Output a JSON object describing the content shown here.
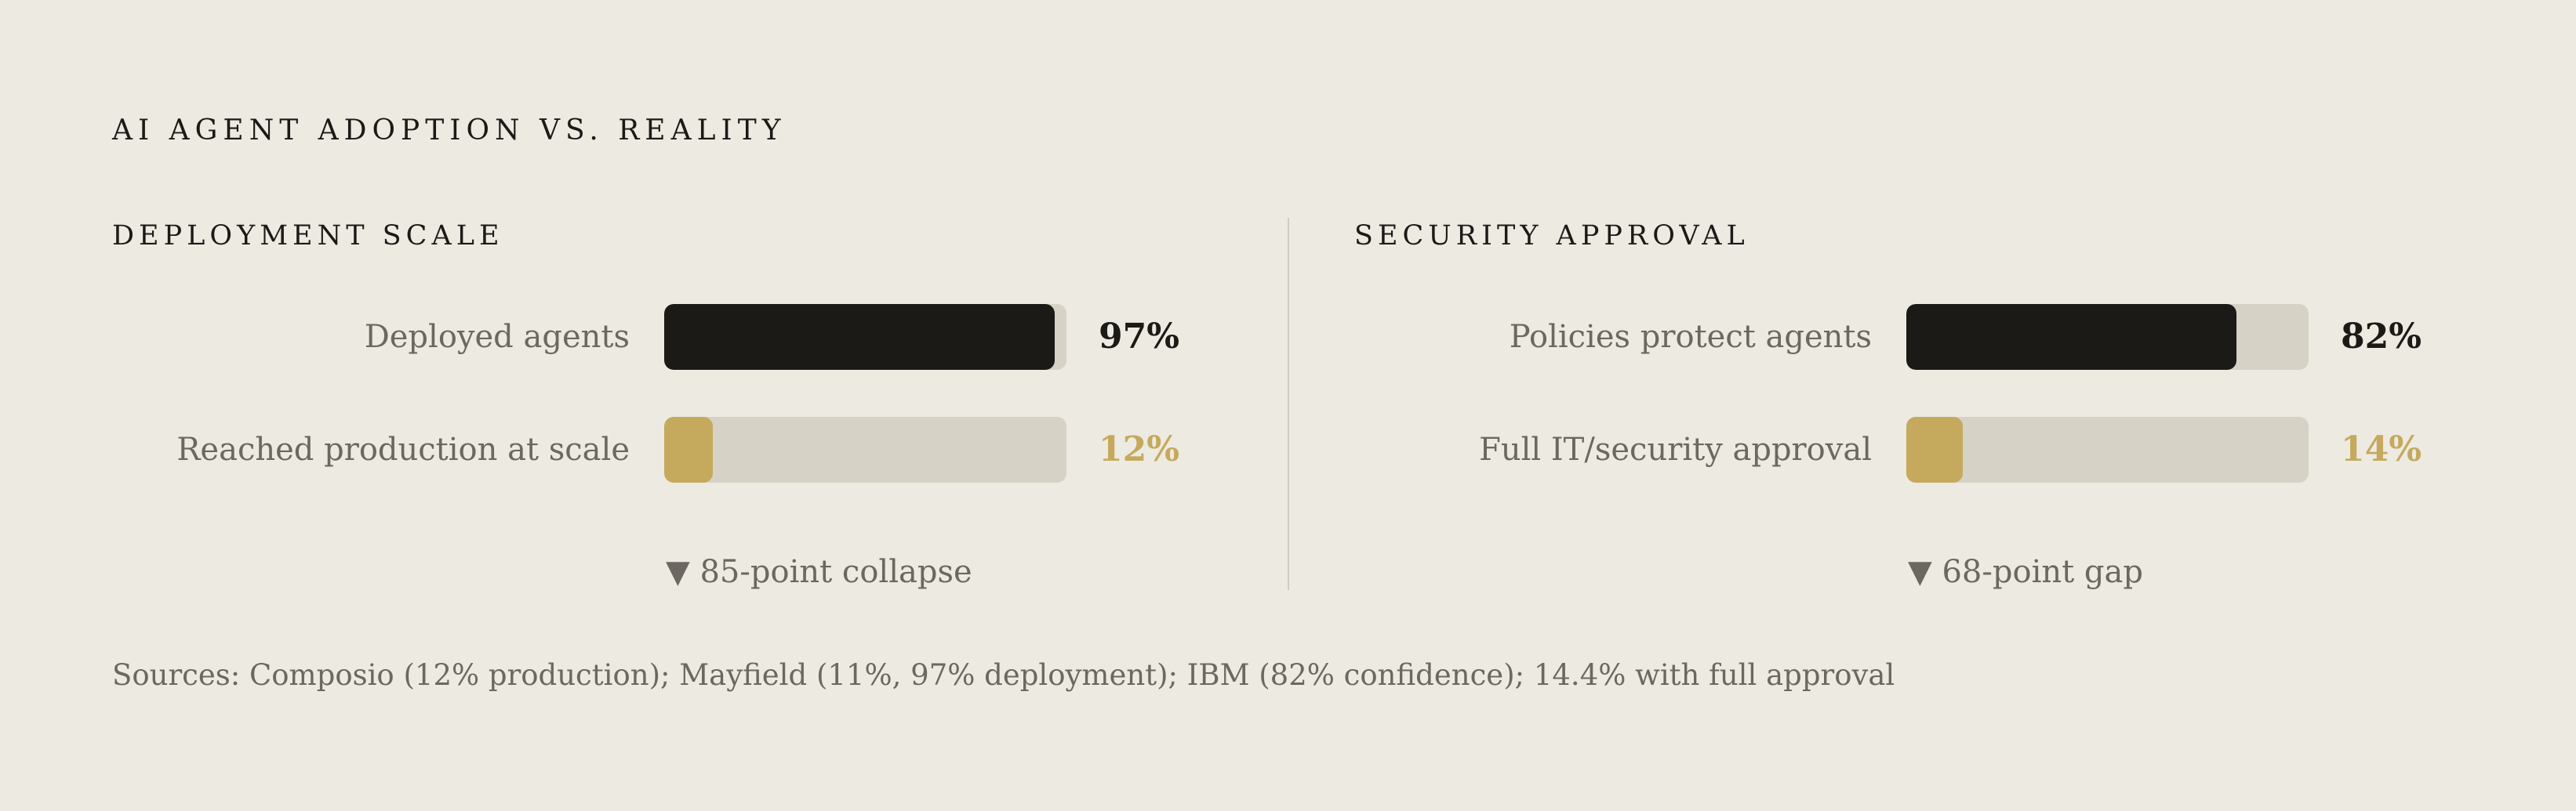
{
  "title": "AI AGENT ADOPTION VS. REALITY",
  "colors": {
    "background": "#edeae2",
    "dark": "#1b1a17",
    "gold": "#c5a95c",
    "track": "#d6d2c6"
  },
  "chart_data": [
    {
      "type": "bar",
      "title": "DEPLOYMENT SCALE",
      "categories": [
        "Deployed agents",
        "Reached production at scale"
      ],
      "values": [
        97,
        12
      ],
      "value_labels": [
        "97%",
        "12%"
      ],
      "bar_colors": [
        "#1b1a17",
        "#c5a95c"
      ],
      "ylim": [
        0,
        100
      ],
      "annotation": "▼ 85-point collapse"
    },
    {
      "type": "bar",
      "title": "SECURITY APPROVAL",
      "categories": [
        "Policies protect agents",
        "Full IT/security approval"
      ],
      "values": [
        82,
        14
      ],
      "value_labels": [
        "82%",
        "14%"
      ],
      "bar_colors": [
        "#1b1a17",
        "#c5a95c"
      ],
      "ylim": [
        0,
        100
      ],
      "annotation": "▼ 68-point gap"
    }
  ],
  "sources": "Sources: Composio (12% production); Mayfield (11%, 97% deployment); IBM (82% confidence); 14.4% with full approval"
}
